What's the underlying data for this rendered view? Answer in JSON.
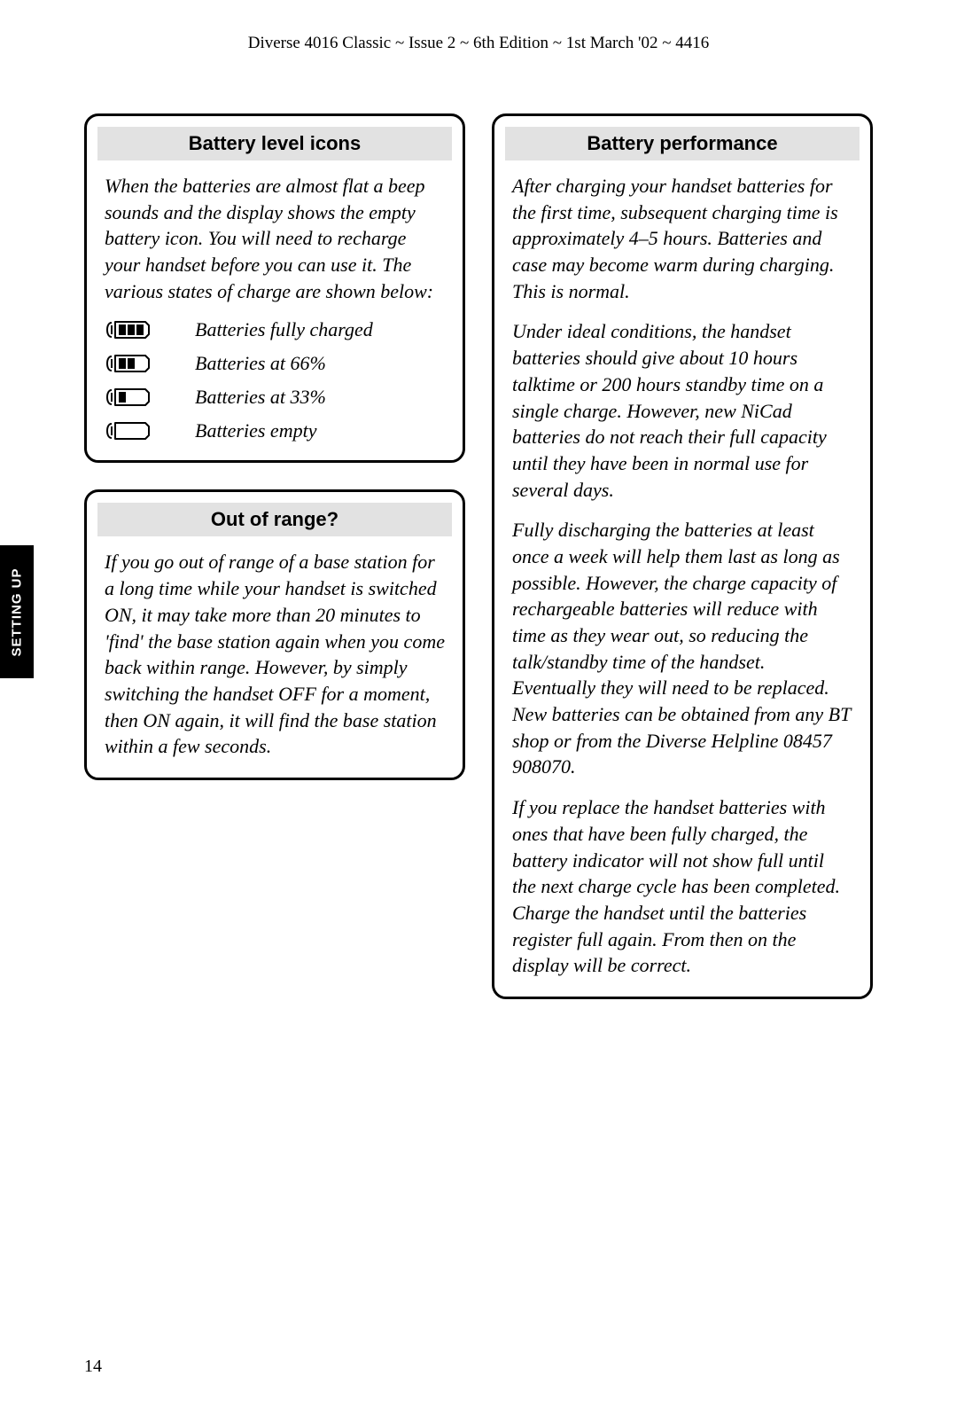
{
  "header": "Diverse 4016 Classic ~ Issue 2 ~ 6th Edition ~ 1st March '02 ~ 4416",
  "sideTab": "SETTING UP",
  "pageNumber": "14",
  "box1": {
    "title": "Battery level icons",
    "intro": "When the batteries are almost flat a beep sounds and the display shows the empty battery icon.  You will need to recharge your handset before you can use it. The various states of charge are shown below:",
    "levels": [
      {
        "bars": 3,
        "label": "Batteries fully charged"
      },
      {
        "bars": 2,
        "label": "Batteries at 66%"
      },
      {
        "bars": 1,
        "label": "Batteries at 33%"
      },
      {
        "bars": 0,
        "label": "Batteries empty"
      }
    ]
  },
  "box2": {
    "title": "Out of range?",
    "body": "If you go out of range of a base station for a long time while your handset is switched ON, it may take more than 20 minutes to 'find' the base station again when you come back within range. However, by simply switching the handset OFF for a moment, then ON again, it will find the base station within a few seconds."
  },
  "box3": {
    "title": "Battery performance",
    "p1": "After charging your handset batteries for the first time, subsequent charging time is approximately 4–5 hours. Batteries and case may become warm during charging. This is normal.",
    "p2": "Under ideal conditions, the handset batteries should give about 10 hours talktime or 200 hours standby time on a single charge. However, new NiCad batteries do not reach their full capacity until they have been in normal use for several days.",
    "p3": "Fully discharging the batteries at least once a week will help them last as long as possible. However, the charge capacity of rechargeable batteries will reduce with time as they wear out, so reducing the talk/standby time of the handset. Eventually they will need to be replaced. New batteries can be obtained from any BT shop or from the Diverse Helpline 08457 908070.",
    "p4": "If you replace the handset batteries with ones that have been fully charged, the battery indicator will not show full until the next charge cycle has been completed. Charge the handset until the batteries register full again. From then on the display will be correct."
  }
}
